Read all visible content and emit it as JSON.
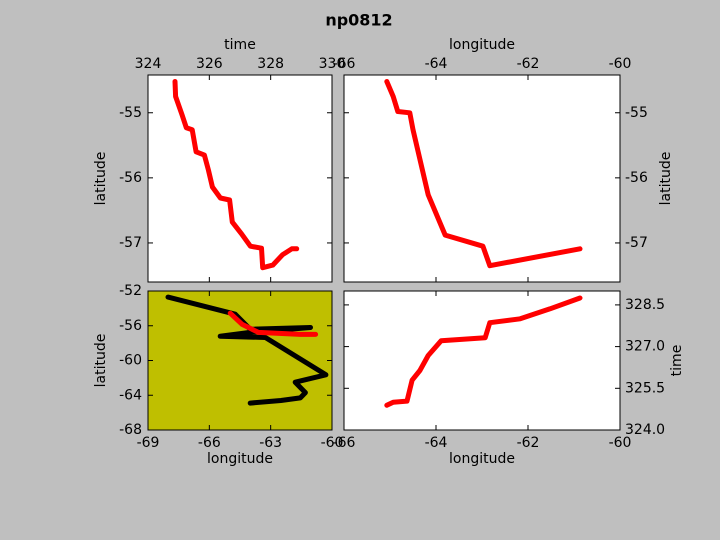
{
  "title": "np0812",
  "chart_data": [
    {
      "type": "line",
      "x_label": "time",
      "y_label": "latitude",
      "x_axis": "top",
      "y_axis": "left",
      "background": "#ffffff",
      "xlim": [
        324,
        330
      ],
      "xticks": [
        324,
        326,
        328,
        330
      ],
      "ylim": [
        -57.6,
        -54.42
      ],
      "yticks": [
        -57,
        -56,
        -55
      ],
      "series": [
        {
          "color": "#ff0000",
          "x": [
            324.88,
            324.9,
            325.11,
            325.25,
            325.44,
            325.57,
            325.84,
            325.97,
            326.1,
            326.36,
            326.66,
            326.75,
            327.05,
            327.34,
            327.7,
            327.74,
            328.07,
            328.39,
            328.69,
            328.85
          ],
          "values": [
            -54.52,
            -54.75,
            -55.03,
            -55.23,
            -55.26,
            -55.6,
            -55.65,
            -55.88,
            -56.14,
            -56.31,
            -56.34,
            -56.68,
            -56.86,
            -57.05,
            -57.08,
            -57.38,
            -57.34,
            -57.18,
            -57.09,
            -57.09
          ]
        }
      ]
    },
    {
      "type": "line",
      "x_label": "longitude",
      "y_label": "latitude",
      "x_axis": "top",
      "y_axis": "right",
      "background": "#ffffff",
      "xlim": [
        -66,
        -60
      ],
      "xticks": [
        -66,
        -64,
        -62,
        -60
      ],
      "ylim": [
        -57.6,
        -54.42
      ],
      "yticks": [
        -57,
        -56,
        -55
      ],
      "series": [
        {
          "color": "#ff0000",
          "x": [
            -65.07,
            -64.93,
            -64.83,
            -64.57,
            -64.5,
            -64.17,
            -63.8,
            -62.98,
            -62.83,
            -60.87
          ],
          "values": [
            -54.52,
            -54.75,
            -54.98,
            -55.0,
            -55.26,
            -56.26,
            -56.88,
            -57.05,
            -57.35,
            -57.09
          ]
        }
      ]
    },
    {
      "type": "line",
      "x_label": "longitude",
      "y_label": "latitude",
      "x_axis": "bottom",
      "y_axis": "left",
      "background": "#bfbf00",
      "xlim": [
        -69,
        -60
      ],
      "xticks": [
        -69,
        -66,
        -63,
        -60
      ],
      "ylim": [
        -68,
        -52
      ],
      "yticks": [
        -68,
        -64,
        -60,
        -56,
        -52
      ],
      "series": [
        {
          "color": "#000000",
          "x": [
            -68.02,
            -64.73,
            -64.0,
            -61.05,
            -64.0,
            -65.47,
            -63.26,
            -60.3,
            -61.8,
            -61.3,
            -61.55,
            -62.5,
            -64.0
          ],
          "values": [
            -52.7,
            -54.67,
            -56.4,
            -56.2,
            -56.77,
            -57.2,
            -57.35,
            -61.65,
            -62.5,
            -63.7,
            -64.3,
            -64.6,
            -64.9
          ]
        },
        {
          "color": "#ff0000",
          "x": [
            -64.98,
            -64.39,
            -63.6,
            -61.55,
            -60.8
          ],
          "values": [
            -54.56,
            -55.84,
            -56.77,
            -57.0,
            -57.0
          ]
        }
      ]
    },
    {
      "type": "line",
      "x_label": "longitude",
      "y_label": "time",
      "x_axis": "bottom",
      "y_axis": "right",
      "background": "#ffffff",
      "xlim": [
        -66,
        -60
      ],
      "xticks": [
        -66,
        -64,
        -62,
        -60
      ],
      "ylim": [
        324,
        329
      ],
      "yticks": [
        {
          "value": 324,
          "label": "324.0"
        },
        {
          "value": 325.5,
          "label": "325.5"
        },
        {
          "value": 327,
          "label": "327.0"
        },
        {
          "value": 328.5,
          "label": "328.5"
        }
      ],
      "series": [
        {
          "color": "#ff0000",
          "x": [
            -65.07,
            -64.93,
            -64.63,
            -64.52,
            -64.35,
            -64.17,
            -63.89,
            -62.93,
            -62.83,
            -62.17,
            -61.52,
            -60.87
          ],
          "values": [
            324.89,
            325.0,
            325.04,
            325.79,
            326.14,
            326.68,
            327.21,
            327.32,
            327.86,
            328.0,
            328.36,
            328.75
          ]
        }
      ]
    }
  ]
}
